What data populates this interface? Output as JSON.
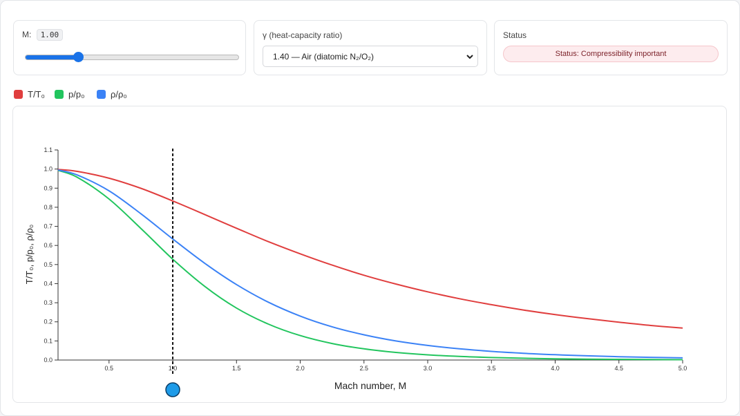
{
  "controls": {
    "mach": {
      "label": "M:",
      "display": "1.00",
      "value": 1.0,
      "min": 0.1,
      "max": 5.0
    },
    "gamma": {
      "label": "γ (heat-capacity ratio)",
      "selected": "1.40 — Air (diatomic N₂/O₂)",
      "value": 1.4
    },
    "status": {
      "label": "Status",
      "text": "Status: Compressibility important"
    }
  },
  "legend": [
    {
      "label": "T/T₀",
      "color": "#e03e3e"
    },
    {
      "label": "p/p₀",
      "color": "#22c55e"
    },
    {
      "label": "ρ/ρ₀",
      "color": "#3b82f6"
    }
  ],
  "chart_data": {
    "type": "line",
    "xlabel": "Mach number, M",
    "ylabel": "T/T₀, p/p₀, ρ/ρ₀",
    "xlim": [
      0.1,
      5.0
    ],
    "ylim": [
      0.0,
      1.1
    ],
    "x_ticks": [
      "0.5",
      "1.0",
      "1.5",
      "2.0",
      "2.5",
      "3.0",
      "3.5",
      "4.0",
      "4.5",
      "5.0"
    ],
    "y_ticks": [
      "0.0",
      "0.1",
      "0.2",
      "0.3",
      "0.4",
      "0.5",
      "0.6",
      "0.7",
      "0.8",
      "0.9",
      "1.0",
      "1.1"
    ],
    "marker_x": 1.0,
    "x": [
      0.1,
      0.25,
      0.5,
      0.75,
      1.0,
      1.25,
      1.5,
      1.75,
      2.0,
      2.25,
      2.5,
      2.75,
      3.0,
      3.25,
      3.5,
      3.75,
      4.0,
      4.25,
      4.5,
      4.75,
      5.0
    ],
    "series": [
      {
        "name": "T/T₀",
        "color": "#e03e3e",
        "values": [
          0.998,
          0.988,
          0.952,
          0.899,
          0.833,
          0.762,
          0.69,
          0.62,
          0.556,
          0.497,
          0.444,
          0.398,
          0.357,
          0.321,
          0.29,
          0.262,
          0.238,
          0.217,
          0.198,
          0.181,
          0.167
        ]
      },
      {
        "name": "p/p₀",
        "color": "#22c55e",
        "values": [
          0.993,
          0.957,
          0.843,
          0.689,
          0.528,
          0.386,
          0.272,
          0.188,
          0.128,
          0.0865,
          0.0585,
          0.0398,
          0.0272,
          0.0188,
          0.0131,
          0.0093,
          0.0066,
          0.0048,
          0.0035,
          0.0026,
          0.0019
        ]
      },
      {
        "name": "ρ/ρ₀",
        "color": "#3b82f6",
        "values": [
          0.995,
          0.969,
          0.886,
          0.766,
          0.634,
          0.507,
          0.395,
          0.303,
          0.23,
          0.174,
          0.132,
          0.1,
          0.0762,
          0.0586,
          0.0452,
          0.0353,
          0.0277,
          0.0219,
          0.0175,
          0.0141,
          0.0113
        ]
      }
    ]
  }
}
